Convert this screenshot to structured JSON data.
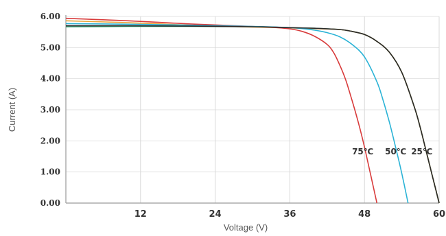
{
  "chart_data": {
    "type": "line",
    "xlabel": "Voltage (V)",
    "ylabel": "Current (A)",
    "xlim": [
      0,
      60
    ],
    "ylim": [
      0,
      6
    ],
    "x_ticks": [
      {
        "value": 12,
        "label": "12"
      },
      {
        "value": 24,
        "label": "24"
      },
      {
        "value": 36,
        "label": "36"
      },
      {
        "value": 48,
        "label": "48"
      },
      {
        "value": 60,
        "label": "60"
      }
    ],
    "y_ticks": [
      {
        "value": 0,
        "label": "0.00"
      },
      {
        "value": 1,
        "label": "1.00"
      },
      {
        "value": 2,
        "label": "2.00"
      },
      {
        "value": 3,
        "label": "3.00"
      },
      {
        "value": 4,
        "label": "4.00"
      },
      {
        "value": 5,
        "label": "5.00"
      },
      {
        "value": 6,
        "label": "6.00"
      }
    ],
    "grid": true,
    "series": [
      {
        "name": "25℃",
        "color": "#2a2a2a",
        "label_at": [
          55.5,
          1.65
        ],
        "x": [
          0,
          10,
          20,
          30,
          36,
          40,
          44,
          46,
          48,
          50,
          52,
          54,
          56,
          57,
          58,
          59,
          60
        ],
        "y": [
          5.7,
          5.7,
          5.69,
          5.67,
          5.64,
          5.62,
          5.58,
          5.52,
          5.42,
          5.2,
          4.85,
          4.2,
          3.1,
          2.4,
          1.6,
          0.8,
          0.0
        ]
      },
      {
        "name": "50℃",
        "color": "#2bb3d6",
        "label_at": [
          51.3,
          1.65
        ],
        "x": [
          0,
          10,
          20,
          30,
          36,
          38,
          40,
          42,
          44,
          46,
          48,
          50,
          51,
          52,
          53,
          54,
          55
        ],
        "y": [
          5.77,
          5.75,
          5.72,
          5.68,
          5.64,
          5.61,
          5.56,
          5.48,
          5.35,
          5.1,
          4.7,
          3.9,
          3.3,
          2.6,
          1.8,
          0.95,
          0.0
        ]
      },
      {
        "name": "75℃",
        "color": "#d83b3b",
        "label_at": [
          46.0,
          1.65
        ],
        "x": [
          0,
          10,
          20,
          30,
          34,
          36,
          38,
          40,
          42,
          43,
          44,
          45,
          46,
          47,
          48,
          49,
          50
        ],
        "y": [
          5.94,
          5.86,
          5.76,
          5.68,
          5.64,
          5.6,
          5.52,
          5.36,
          5.1,
          4.85,
          4.45,
          3.95,
          3.3,
          2.6,
          1.8,
          0.9,
          0.0
        ]
      },
      {
        "name": "",
        "color": "#e8a33a",
        "x": [
          0,
          10,
          20,
          30,
          36,
          40,
          44,
          46,
          48,
          50,
          52,
          54,
          56,
          57,
          58,
          59,
          60
        ],
        "y": [
          5.86,
          5.8,
          5.72,
          5.66,
          5.63,
          5.61,
          5.58,
          5.52,
          5.42,
          5.2,
          4.85,
          4.2,
          3.1,
          2.4,
          1.6,
          0.8,
          0.0
        ]
      },
      {
        "name": "",
        "color": "#2e9b6e",
        "x": [
          0,
          10,
          20,
          30,
          36,
          40,
          44,
          46,
          48,
          50,
          52,
          54,
          56,
          57,
          58,
          59,
          60
        ],
        "y": [
          5.67,
          5.68,
          5.68,
          5.67,
          5.64,
          5.62,
          5.58,
          5.52,
          5.42,
          5.2,
          4.85,
          4.2,
          3.1,
          2.4,
          1.6,
          0.8,
          0.0
        ]
      }
    ]
  }
}
